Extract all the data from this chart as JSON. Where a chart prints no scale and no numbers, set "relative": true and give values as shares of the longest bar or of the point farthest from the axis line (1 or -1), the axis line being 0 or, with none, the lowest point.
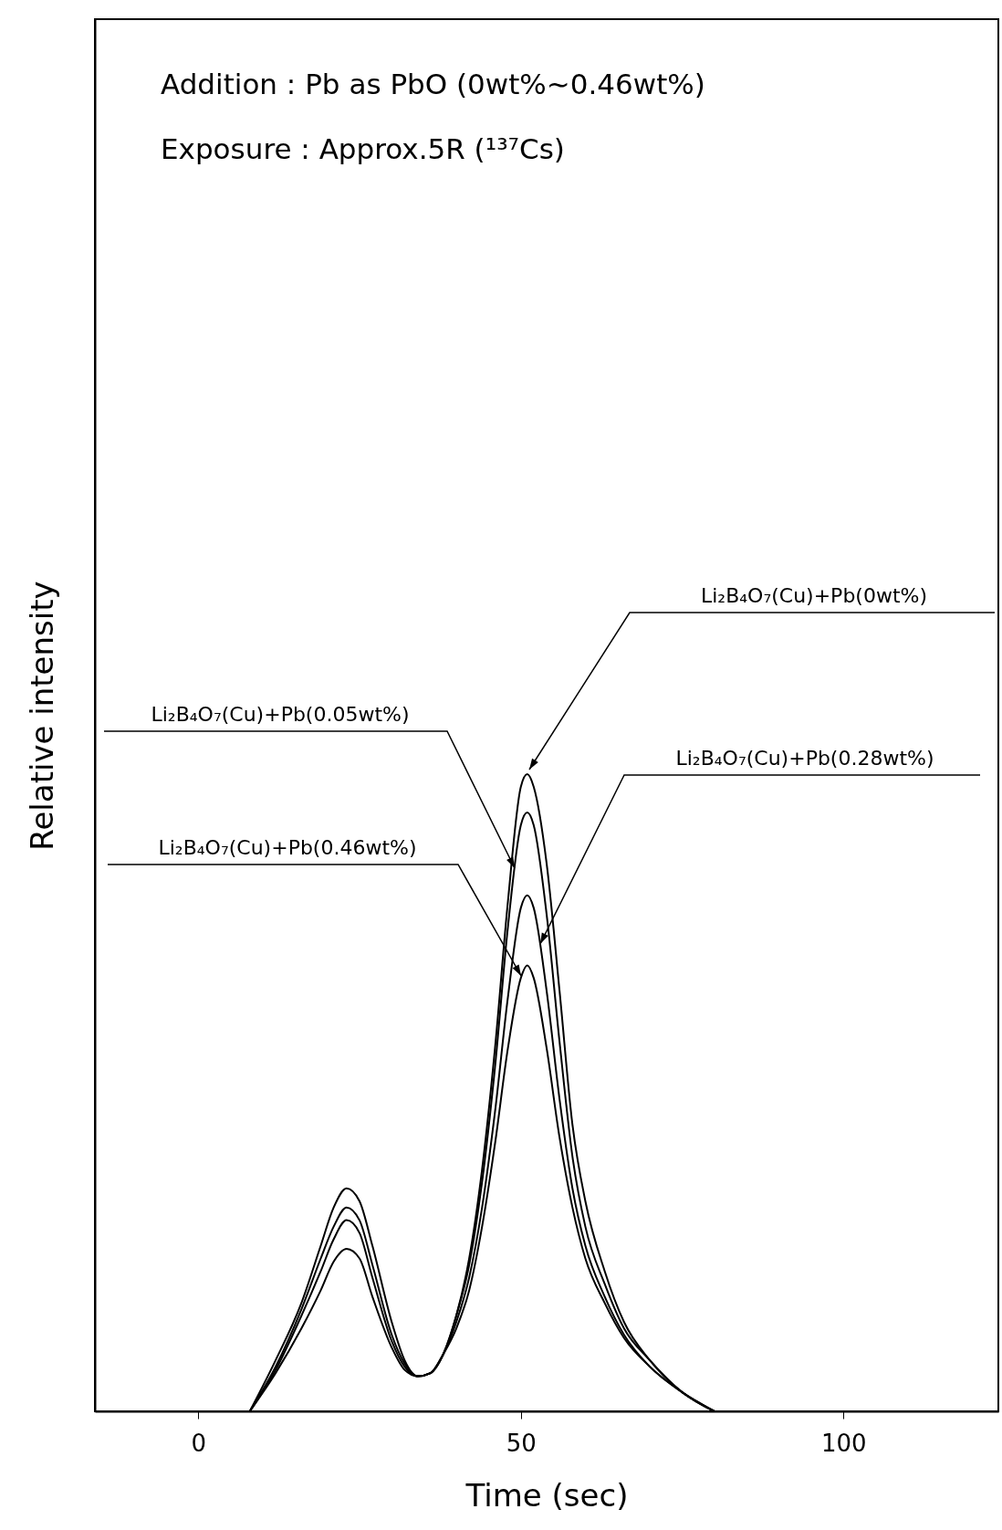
{
  "chart_data": {
    "type": "line",
    "relative": true,
    "xlabel": "Time (sec)",
    "ylabel": "Relative intensity",
    "xlim": [
      -16,
      124
    ],
    "xticks": [
      0,
      50,
      100
    ],
    "grid": false,
    "legend": false,
    "marker": "none",
    "line_style": "solid",
    "annotations": [
      "Addition : Pb as PbO (0wt%∼0.46wt%)",
      "Exposure : Approx.5R (¹³⁷Cs)"
    ],
    "x": [
      8,
      12,
      16,
      19,
      21,
      23,
      25,
      27,
      30,
      32,
      34,
      36,
      38,
      40,
      42,
      44,
      46,
      48,
      50,
      51,
      52,
      54,
      56,
      58,
      60,
      63,
      66,
      70,
      75,
      80
    ],
    "series": [
      {
        "name": "Li₂B₄O₇(Cu)+Pb(0wt%)",
        "color": "#000000",
        "values": [
          0,
          0.08,
          0.17,
          0.26,
          0.32,
          0.35,
          0.33,
          0.26,
          0.14,
          0.08,
          0.055,
          0.06,
          0.09,
          0.15,
          0.24,
          0.38,
          0.57,
          0.8,
          0.98,
          1.0,
          0.98,
          0.86,
          0.66,
          0.45,
          0.33,
          0.22,
          0.14,
          0.08,
          0.03,
          0
        ]
      },
      {
        "name": "Li₂B₄O₇(Cu)+Pb(0.05wt%)",
        "color": "#000000",
        "values": [
          0,
          0.07,
          0.16,
          0.24,
          0.29,
          0.32,
          0.3,
          0.23,
          0.12,
          0.075,
          0.055,
          0.06,
          0.09,
          0.15,
          0.23,
          0.36,
          0.54,
          0.76,
          0.92,
          0.94,
          0.92,
          0.78,
          0.58,
          0.4,
          0.29,
          0.2,
          0.13,
          0.08,
          0.03,
          0
        ]
      },
      {
        "name": "Li₂B₄O₇(Cu)+Pb(0.28wt%)",
        "color": "#000000",
        "values": [
          0,
          0.065,
          0.15,
          0.22,
          0.27,
          0.3,
          0.28,
          0.21,
          0.11,
          0.07,
          0.055,
          0.06,
          0.09,
          0.14,
          0.21,
          0.32,
          0.47,
          0.65,
          0.79,
          0.81,
          0.79,
          0.66,
          0.49,
          0.35,
          0.26,
          0.18,
          0.12,
          0.07,
          0.03,
          0
        ]
      },
      {
        "name": "Li₂B₄O₇(Cu)+Pb(0.46wt%)",
        "color": "#000000",
        "values": [
          0,
          0.06,
          0.13,
          0.19,
          0.235,
          0.255,
          0.24,
          0.18,
          0.1,
          0.065,
          0.055,
          0.06,
          0.09,
          0.13,
          0.19,
          0.29,
          0.42,
          0.57,
          0.68,
          0.7,
          0.68,
          0.57,
          0.43,
          0.32,
          0.24,
          0.17,
          0.115,
          0.07,
          0.03,
          0
        ]
      }
    ]
  }
}
